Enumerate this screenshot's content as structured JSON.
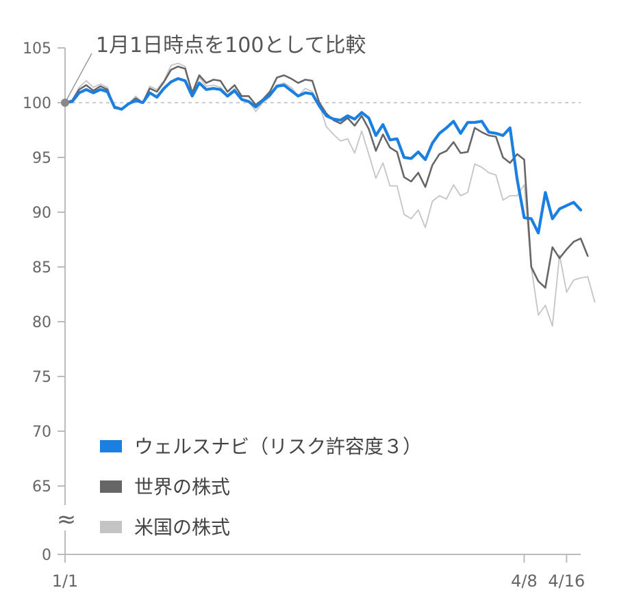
{
  "chart_data": {
    "type": "line",
    "annotation": "1月1日時点を100として比較",
    "baseline": 100,
    "y_ticks": [
      "105",
      "100",
      "95",
      "90",
      "85",
      "80",
      "75",
      "70",
      "65",
      "0"
    ],
    "y_break_symbol": "≈",
    "x_tick_labels": [
      {
        "label": "1/1",
        "index": 0
      },
      {
        "label": "4/8",
        "index": 65
      },
      {
        "label": "4/16",
        "index": 71
      }
    ],
    "colors": {
      "wealthnavi": "#1a7fe0",
      "world": "#666666",
      "us": "#c4c4c4",
      "axis": "#bbbbbb",
      "baseline": "#bbbbbb"
    },
    "series": [
      {
        "name": "ウェルスナビ（リスク許容度３）",
        "color": "#1a7fe0",
        "values": [
          100.0,
          100.1,
          100.9,
          101.2,
          100.9,
          101.2,
          101.0,
          99.6,
          99.4,
          99.9,
          100.2,
          100.0,
          100.9,
          100.5,
          101.3,
          101.9,
          102.2,
          102.0,
          100.6,
          101.8,
          101.2,
          101.3,
          101.2,
          100.6,
          101.1,
          100.3,
          100.1,
          99.6,
          100.2,
          100.7,
          101.5,
          101.6,
          101.1,
          100.6,
          100.9,
          100.8,
          99.7,
          98.8,
          98.5,
          98.4,
          98.8,
          98.5,
          99.1,
          98.6,
          97.0,
          98.0,
          96.6,
          96.7,
          95.0,
          94.9,
          95.5,
          94.8,
          96.3,
          97.2,
          97.7,
          98.3,
          97.2,
          98.2,
          98.2,
          98.3,
          97.3,
          97.2,
          97.0,
          97.7,
          93.0,
          89.5,
          89.4,
          88.1,
          91.8,
          89.4,
          90.3,
          90.6,
          90.9,
          90.2
        ]
      },
      {
        "name": "世界の株式",
        "color": "#666666",
        "values": [
          100.0,
          100.2,
          101.2,
          101.6,
          101.1,
          101.5,
          101.2,
          99.5,
          99.4,
          99.9,
          100.4,
          100.0,
          101.3,
          101.0,
          101.9,
          103.0,
          103.3,
          103.1,
          100.9,
          102.5,
          101.8,
          102.1,
          102.0,
          101.0,
          101.6,
          100.6,
          100.6,
          99.8,
          100.3,
          101.0,
          102.3,
          102.5,
          102.2,
          101.8,
          102.1,
          102.0,
          100.0,
          99.0,
          98.4,
          98.1,
          98.6,
          97.9,
          98.8,
          97.6,
          95.6,
          97.1,
          95.9,
          95.5,
          93.2,
          92.8,
          93.6,
          92.3,
          94.3,
          95.3,
          95.6,
          96.4,
          95.4,
          95.5,
          97.7,
          97.3,
          97.0,
          96.9,
          95.0,
          94.5,
          95.3,
          94.8,
          85.0,
          83.7,
          83.1,
          86.8,
          85.8,
          86.6,
          87.3,
          87.6,
          86.0
        ]
      },
      {
        "name": "米国の株式",
        "color": "#c4c4c4",
        "values": [
          100.0,
          100.2,
          101.4,
          102.0,
          101.4,
          101.7,
          101.4,
          99.5,
          99.5,
          99.9,
          100.6,
          100.0,
          101.5,
          101.2,
          102.0,
          103.4,
          103.6,
          103.3,
          100.8,
          102.3,
          101.5,
          101.6,
          101.4,
          100.7,
          101.3,
          100.2,
          100.1,
          99.2,
          100.0,
          100.5,
          101.6,
          101.8,
          101.4,
          100.6,
          101.3,
          101.0,
          99.8,
          97.8,
          97.1,
          96.5,
          96.7,
          95.4,
          97.4,
          95.3,
          93.1,
          94.5,
          92.4,
          92.4,
          89.8,
          89.4,
          90.2,
          88.6,
          91.0,
          91.5,
          91.2,
          92.5,
          91.5,
          91.8,
          94.4,
          94.1,
          93.6,
          93.4,
          91.1,
          91.5,
          91.5,
          92.5,
          85.0,
          80.6,
          81.5,
          79.6,
          86.1,
          82.7,
          83.8,
          84.0,
          84.1,
          81.8
        ]
      }
    ],
    "legend": [
      {
        "label": "ウェルスナビ（リスク許容度３）",
        "color": "#1a7fe0"
      },
      {
        "label": "世界の株式",
        "color": "#666666"
      },
      {
        "label": "米国の株式",
        "color": "#c4c4c4"
      }
    ]
  }
}
